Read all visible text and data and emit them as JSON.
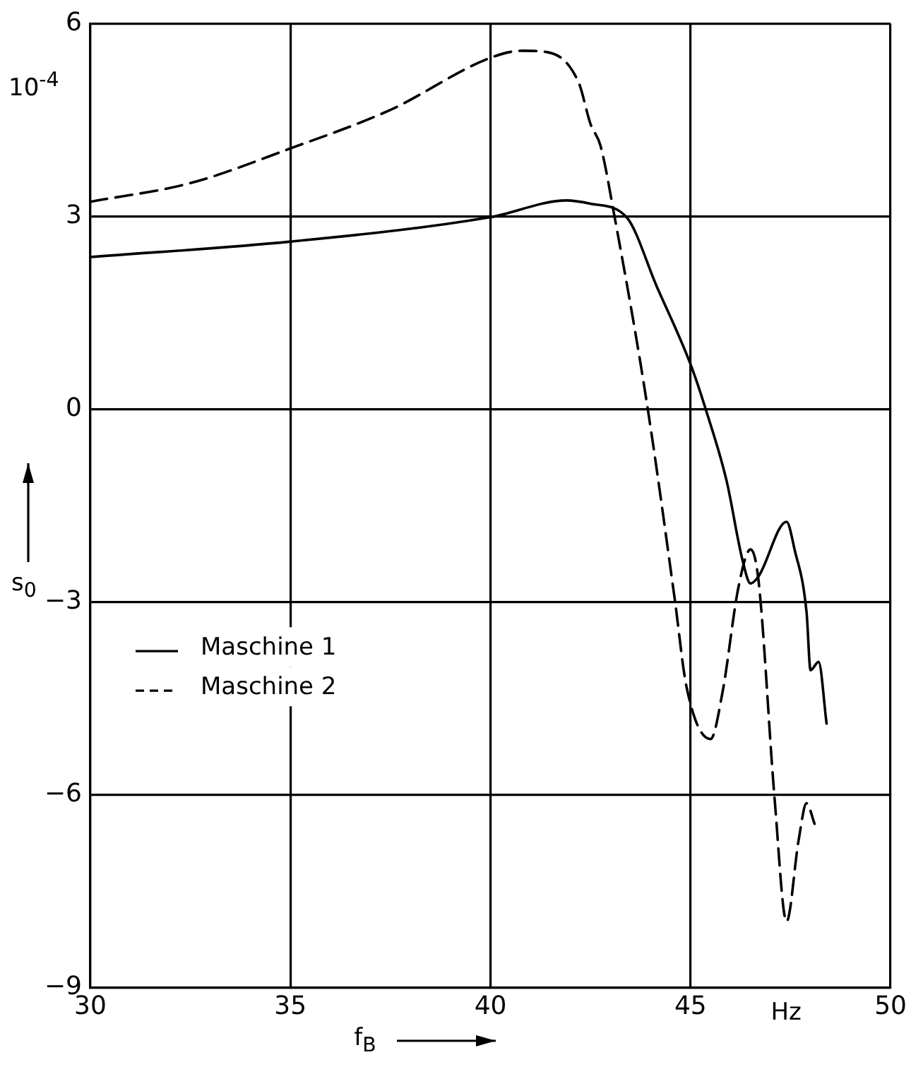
{
  "chart_data": {
    "type": "line",
    "xlabel": "f$_{B}$",
    "ylabel": "s$_{0}$",
    "annotations": [
      "10$^{-4}$",
      "Hz"
    ],
    "xlim": [
      30,
      50
    ],
    "xticks": [
      30,
      35,
      40,
      45,
      50
    ],
    "ylim": [
      -9,
      6
    ],
    "yticks": [
      -9,
      -6,
      -3,
      0,
      3,
      6
    ],
    "grid": true,
    "legend": "left",
    "marker": "none",
    "series": [
      {
        "name": "Maschine 1",
        "color": "#000000",
        "line_style": "solid",
        "x": [
          30,
          35,
          40,
          41.9,
          42.5,
          43.4,
          44.15,
          45,
          45.4,
          45.9,
          46.3,
          46.5,
          46.7,
          47.4,
          47.6,
          47.9,
          48.0,
          48.2,
          48.4
        ],
        "values": [
          2.37,
          2.61,
          2.99,
          3.25,
          3.2,
          2.99,
          1.92,
          0.7,
          -0.04,
          -1.11,
          -2.35,
          -2.71,
          -2.6,
          -1.75,
          -2.18,
          -3.16,
          -4.06,
          -3.93,
          -4.89
        ]
      },
      {
        "name": "Maschine 2",
        "color": "#000000",
        "line_style": "dashed",
        "x": [
          30,
          32.5,
          35,
          37.5,
          40,
          40.8,
          41.4,
          42.2,
          42.5,
          42.75,
          43.1,
          43.9,
          44.6,
          44.9,
          45.5,
          45.8,
          46.2,
          46.5,
          46.7,
          47.1,
          47.4,
          47.7,
          47.9,
          48.1
        ],
        "values": [
          3.23,
          3.52,
          4.06,
          4.66,
          5.47,
          5.58,
          5.56,
          5.09,
          4.44,
          4.1,
          3.0,
          0.13,
          -2.93,
          -4.32,
          -5.13,
          -4.4,
          -2.76,
          -2.18,
          -2.67,
          -6.05,
          -7.97,
          -6.71,
          -6.13,
          -6.45
        ]
      }
    ]
  }
}
